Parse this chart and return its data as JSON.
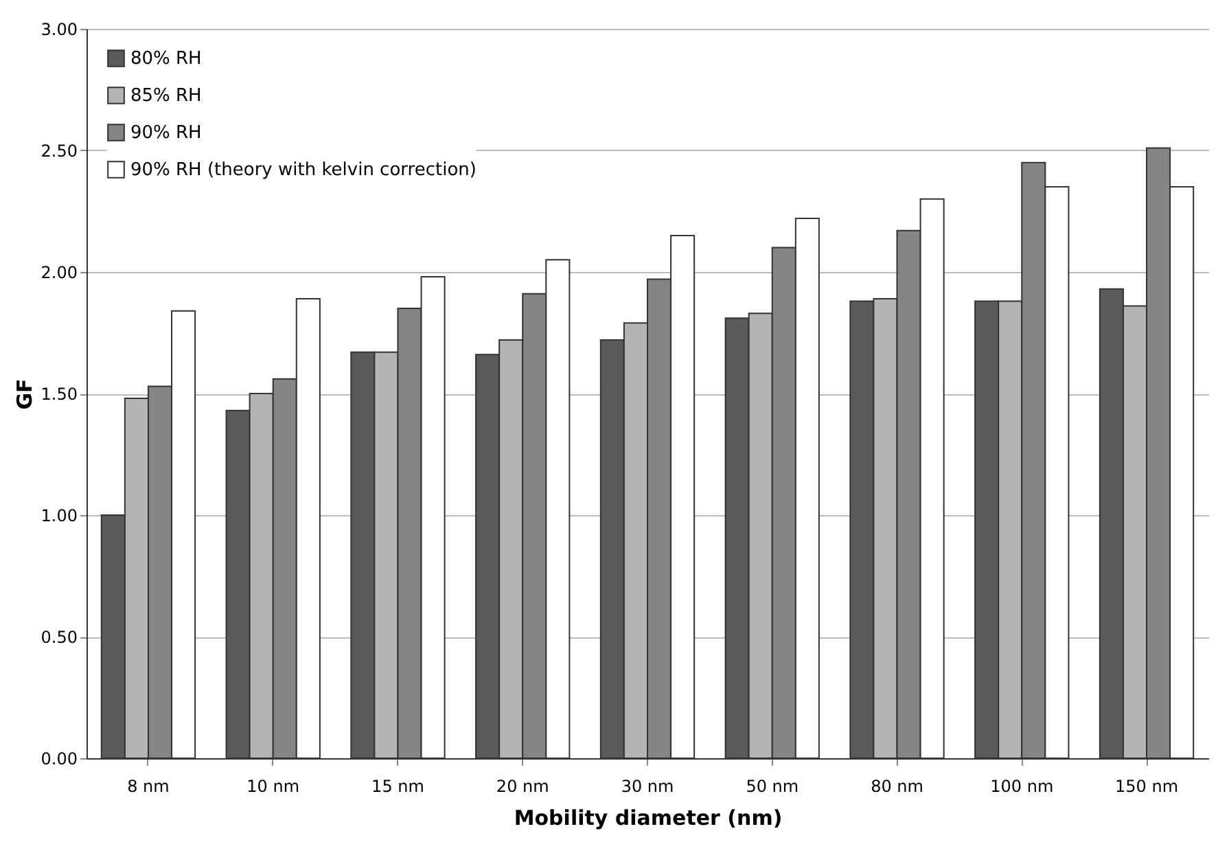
{
  "chart_data": {
    "type": "bar",
    "xlabel": "Mobility diameter (nm)",
    "ylabel": "GF",
    "categories": [
      "8 nm",
      "10 nm",
      "15 nm",
      "20 nm",
      "30 nm",
      "50 nm",
      "80 nm",
      "100 nm",
      "150 nm"
    ],
    "series": [
      {
        "name": "80% RH",
        "color": "#5a5a5a",
        "values": [
          1.0,
          1.43,
          1.67,
          1.66,
          1.72,
          1.81,
          1.88,
          1.88,
          1.93
        ]
      },
      {
        "name": "85% RH",
        "color": "#b4b4b4",
        "values": [
          1.48,
          1.5,
          1.67,
          1.72,
          1.79,
          1.83,
          1.89,
          1.88,
          1.86
        ]
      },
      {
        "name": "90% RH",
        "color": "#858585",
        "values": [
          1.53,
          1.56,
          1.85,
          1.91,
          1.97,
          2.1,
          2.17,
          2.45,
          2.51
        ]
      },
      {
        "name": "90% RH (theory with kelvin correction)",
        "color": "#ffffff",
        "values": [
          1.84,
          1.89,
          1.98,
          2.05,
          2.15,
          2.22,
          2.3,
          2.35,
          2.35
        ]
      }
    ],
    "ylim": [
      0,
      3
    ],
    "yticks": [
      {
        "value": 0,
        "label": "0.00"
      },
      {
        "value": 0.5,
        "label": "0.50"
      },
      {
        "value": 1,
        "label": "1.00"
      },
      {
        "value": 1.5,
        "label": "1.50"
      },
      {
        "value": 2,
        "label": "2.00"
      },
      {
        "value": 2.5,
        "label": "2.50"
      },
      {
        "value": 3,
        "label": "3.00"
      }
    ],
    "grid": "y",
    "legend": "top left"
  }
}
